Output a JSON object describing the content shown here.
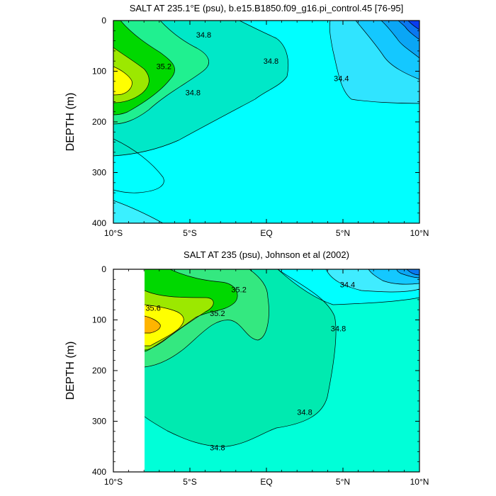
{
  "chart_data": [
    {
      "type": "heatmap",
      "title": "SALT AT 235.1°E (psu), b.e15.B1850.f09_g16.pi_control.45 [76-95]",
      "ylabel": "DEPTH (m)",
      "xlabel": "",
      "xlim": [
        -10,
        10
      ],
      "ylim": [
        0,
        400
      ],
      "y_reversed": true,
      "x_ticks": [
        -10,
        -5,
        0,
        5,
        10
      ],
      "x_tick_labels": [
        "10°S",
        "5°S",
        "EQ",
        "5°N",
        "10°N"
      ],
      "y_ticks": [
        0,
        100,
        200,
        300,
        400
      ],
      "y_tick_labels": [
        "0",
        "100",
        "200",
        "300",
        "400"
      ],
      "contour_labels": [
        {
          "text": "34.8",
          "x": -4.1,
          "y": 28
        },
        {
          "text": "35.2",
          "x": -6.7,
          "y": 90
        },
        {
          "text": "34.8",
          "x": 0.3,
          "y": 80
        },
        {
          "text": "34.4",
          "x": 4.9,
          "y": 114
        },
        {
          "text": "34.8",
          "x": -4.8,
          "y": 142
        }
      ],
      "data_start_x": -10
    },
    {
      "type": "heatmap",
      "title": "SALT AT 235 (psu), Johnson et al (2002)",
      "ylabel": "DEPTH (m)",
      "xlabel": "",
      "xlim": [
        -10,
        10
      ],
      "ylim": [
        0,
        400
      ],
      "y_reversed": true,
      "x_ticks": [
        -10,
        -5,
        0,
        5,
        10
      ],
      "x_tick_labels": [
        "10°S",
        "5°S",
        "EQ",
        "5°N",
        "10°N"
      ],
      "y_ticks": [
        0,
        100,
        200,
        300,
        400
      ],
      "y_tick_labels": [
        "0",
        "100",
        "200",
        "300",
        "400"
      ],
      "contour_labels": [
        {
          "text": "35.2",
          "x": -1.8,
          "y": 40
        },
        {
          "text": "34.4",
          "x": 5.3,
          "y": 30
        },
        {
          "text": "35.6",
          "x": -7.4,
          "y": 76
        },
        {
          "text": "35.2",
          "x": -3.2,
          "y": 87
        },
        {
          "text": "34.8",
          "x": 4.7,
          "y": 117
        },
        {
          "text": "34.8",
          "x": 2.5,
          "y": 282
        },
        {
          "text": "34.8",
          "x": -3.2,
          "y": 352
        }
      ],
      "data_start_x": -8
    }
  ]
}
